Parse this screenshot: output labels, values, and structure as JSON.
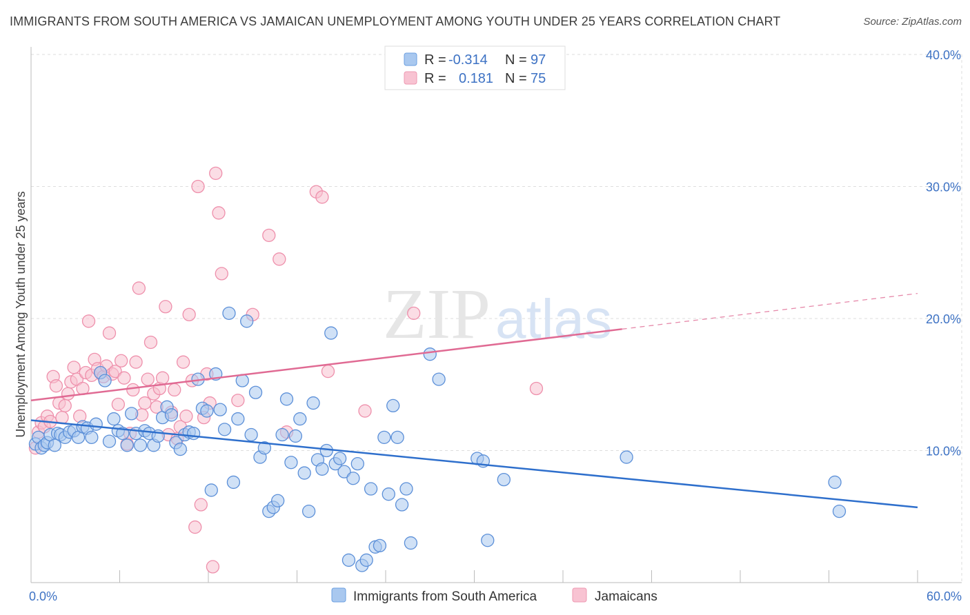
{
  "header": {
    "title": "IMMIGRANTS FROM SOUTH AMERICA VS JAMAICAN UNEMPLOYMENT AMONG YOUTH UNDER 25 YEARS CORRELATION CHART",
    "source": "Source: ZipAtlas.com"
  },
  "watermark": {
    "zip": "ZIP",
    "atlas": "atlas"
  },
  "legend": {
    "r_label": "R =",
    "n_label": "N =",
    "rows": [
      {
        "r": "-0.314",
        "n": "97",
        "fill": "#a9c8ef",
        "stroke": "#6b9fe0"
      },
      {
        "r": "0.181",
        "n": "75",
        "fill": "#f8c3d2",
        "stroke": "#ee98b2"
      }
    ]
  },
  "colors": {
    "blue_fill": "#a9c8ef",
    "blue_stroke": "#5b8fd8",
    "blue_line": "#2e6fcc",
    "pink_fill": "#f7c1d0",
    "pink_stroke": "#ee8fab",
    "pink_line": "#e06a93",
    "tick_label": "#3d72c4",
    "grid": "#dddddd"
  },
  "chart_data": {
    "type": "scatter",
    "title": "IMMIGRANTS FROM SOUTH AMERICA VS JAMAICAN UNEMPLOYMENT AMONG YOUTH UNDER 25 YEARS CORRELATION CHART",
    "xlabel": "",
    "ylabel": "Unemployment Among Youth under 25 years",
    "xlim": [
      0,
      60
    ],
    "ylim": [
      0,
      40
    ],
    "x_tick_labels": [
      "0.0%",
      "60.0%"
    ],
    "y_ticks": [
      10,
      20,
      30,
      40
    ],
    "y_tick_labels": [
      "10.0%",
      "20.0%",
      "30.0%",
      "40.0%"
    ],
    "grid": true,
    "legend_position": "top-center",
    "series": [
      {
        "name": "Immigrants from South America",
        "r": -0.314,
        "n": 97,
        "trend": {
          "x": [
            0,
            60
          ],
          "y": [
            12.3,
            5.7
          ],
          "dashed_from": null
        },
        "points": [
          [
            0.3,
            10.5
          ],
          [
            0.5,
            11.0
          ],
          [
            0.7,
            10.2
          ],
          [
            0.9,
            10.4
          ],
          [
            1.1,
            10.6
          ],
          [
            1.3,
            11.2
          ],
          [
            1.6,
            10.4
          ],
          [
            1.8,
            11.3
          ],
          [
            2.0,
            11.2
          ],
          [
            2.3,
            11.0
          ],
          [
            2.6,
            11.4
          ],
          [
            2.9,
            11.5
          ],
          [
            3.2,
            11.0
          ],
          [
            3.5,
            11.8
          ],
          [
            3.8,
            11.7
          ],
          [
            4.1,
            11.0
          ],
          [
            4.4,
            12.0
          ],
          [
            4.7,
            15.9
          ],
          [
            5.0,
            15.3
          ],
          [
            5.3,
            10.7
          ],
          [
            5.6,
            12.4
          ],
          [
            5.9,
            11.5
          ],
          [
            6.2,
            11.3
          ],
          [
            6.5,
            10.4
          ],
          [
            6.8,
            12.8
          ],
          [
            7.1,
            11.3
          ],
          [
            7.4,
            10.4
          ],
          [
            7.7,
            11.5
          ],
          [
            8.0,
            11.3
          ],
          [
            8.3,
            10.4
          ],
          [
            8.6,
            11.1
          ],
          [
            8.9,
            12.5
          ],
          [
            9.2,
            13.3
          ],
          [
            9.5,
            12.7
          ],
          [
            9.8,
            10.6
          ],
          [
            10.1,
            10.1
          ],
          [
            10.4,
            11.2
          ],
          [
            10.7,
            11.4
          ],
          [
            11.0,
            11.3
          ],
          [
            11.3,
            15.4
          ],
          [
            11.6,
            13.2
          ],
          [
            11.9,
            13.0
          ],
          [
            12.2,
            7.0
          ],
          [
            12.5,
            15.8
          ],
          [
            12.8,
            13.1
          ],
          [
            13.1,
            11.6
          ],
          [
            13.4,
            20.4
          ],
          [
            13.7,
            7.6
          ],
          [
            14.0,
            12.4
          ],
          [
            14.3,
            15.3
          ],
          [
            14.6,
            19.8
          ],
          [
            14.9,
            11.2
          ],
          [
            15.2,
            14.4
          ],
          [
            15.5,
            9.5
          ],
          [
            15.8,
            10.2
          ],
          [
            16.1,
            5.4
          ],
          [
            16.4,
            5.7
          ],
          [
            16.7,
            6.2
          ],
          [
            17.0,
            11.2
          ],
          [
            17.3,
            13.9
          ],
          [
            17.6,
            9.1
          ],
          [
            17.9,
            11.1
          ],
          [
            18.2,
            12.4
          ],
          [
            18.5,
            8.3
          ],
          [
            18.8,
            5.4
          ],
          [
            19.1,
            13.6
          ],
          [
            19.4,
            9.3
          ],
          [
            19.7,
            8.6
          ],
          [
            20.0,
            10.0
          ],
          [
            20.3,
            18.9
          ],
          [
            20.6,
            9.0
          ],
          [
            20.9,
            9.4
          ],
          [
            21.2,
            8.4
          ],
          [
            21.5,
            1.7
          ],
          [
            21.8,
            7.9
          ],
          [
            22.1,
            9.0
          ],
          [
            22.4,
            1.3
          ],
          [
            22.7,
            1.7
          ],
          [
            23.0,
            7.1
          ],
          [
            23.3,
            2.7
          ],
          [
            23.6,
            2.8
          ],
          [
            23.9,
            11.0
          ],
          [
            24.2,
            6.7
          ],
          [
            24.5,
            13.4
          ],
          [
            24.8,
            11.0
          ],
          [
            25.1,
            5.9
          ],
          [
            25.4,
            7.1
          ],
          [
            25.7,
            3.0
          ],
          [
            27.0,
            17.3
          ],
          [
            27.6,
            15.4
          ],
          [
            30.2,
            9.4
          ],
          [
            30.6,
            9.2
          ],
          [
            30.9,
            3.2
          ],
          [
            32.0,
            7.8
          ],
          [
            40.3,
            9.5
          ],
          [
            54.4,
            7.6
          ],
          [
            54.7,
            5.4
          ]
        ]
      },
      {
        "name": "Jamaicans",
        "r": 0.181,
        "n": 75,
        "trend": {
          "x": [
            0,
            60
          ],
          "y": [
            13.8,
            21.9
          ],
          "dashed_from": 40
        },
        "points": [
          [
            0.3,
            10.2
          ],
          [
            0.5,
            11.4
          ],
          [
            0.7,
            12.1
          ],
          [
            0.9,
            11.8
          ],
          [
            1.1,
            12.6
          ],
          [
            1.3,
            12.2
          ],
          [
            1.5,
            15.6
          ],
          [
            1.7,
            14.9
          ],
          [
            1.9,
            13.6
          ],
          [
            2.1,
            12.5
          ],
          [
            2.3,
            13.4
          ],
          [
            2.5,
            14.3
          ],
          [
            2.7,
            15.2
          ],
          [
            2.9,
            16.3
          ],
          [
            3.1,
            15.4
          ],
          [
            3.3,
            12.6
          ],
          [
            3.5,
            14.7
          ],
          [
            3.7,
            15.9
          ],
          [
            3.9,
            19.8
          ],
          [
            4.1,
            15.7
          ],
          [
            4.3,
            16.9
          ],
          [
            4.5,
            16.2
          ],
          [
            4.7,
            15.9
          ],
          [
            4.9,
            15.6
          ],
          [
            5.1,
            16.4
          ],
          [
            5.3,
            18.9
          ],
          [
            5.5,
            15.8
          ],
          [
            5.7,
            16.0
          ],
          [
            5.9,
            13.5
          ],
          [
            6.1,
            16.8
          ],
          [
            6.3,
            15.5
          ],
          [
            6.5,
            10.5
          ],
          [
            6.7,
            11.3
          ],
          [
            6.9,
            14.6
          ],
          [
            7.1,
            16.7
          ],
          [
            7.3,
            22.3
          ],
          [
            7.5,
            12.7
          ],
          [
            7.7,
            13.6
          ],
          [
            7.9,
            15.4
          ],
          [
            8.1,
            18.2
          ],
          [
            8.3,
            14.3
          ],
          [
            8.5,
            13.3
          ],
          [
            8.7,
            14.7
          ],
          [
            8.9,
            15.5
          ],
          [
            9.1,
            20.9
          ],
          [
            9.3,
            11.2
          ],
          [
            9.5,
            12.9
          ],
          [
            9.7,
            14.6
          ],
          [
            9.9,
            10.9
          ],
          [
            10.1,
            11.8
          ],
          [
            10.3,
            16.7
          ],
          [
            10.5,
            12.6
          ],
          [
            10.7,
            20.3
          ],
          [
            10.9,
            15.3
          ],
          [
            11.1,
            4.2
          ],
          [
            11.3,
            30.0
          ],
          [
            11.5,
            5.9
          ],
          [
            11.7,
            12.5
          ],
          [
            11.9,
            15.8
          ],
          [
            12.1,
            13.6
          ],
          [
            12.3,
            1.2
          ],
          [
            12.5,
            31.0
          ],
          [
            12.7,
            28.0
          ],
          [
            12.9,
            23.4
          ],
          [
            14.0,
            13.8
          ],
          [
            15.0,
            20.3
          ],
          [
            16.1,
            26.3
          ],
          [
            16.8,
            24.5
          ],
          [
            17.3,
            11.4
          ],
          [
            19.3,
            29.6
          ],
          [
            19.7,
            29.2
          ],
          [
            20.1,
            16.0
          ],
          [
            22.6,
            13.0
          ],
          [
            25.9,
            20.4
          ],
          [
            34.2,
            14.7
          ]
        ]
      }
    ]
  },
  "bottom_legend": [
    {
      "label": "Immigrants from South America"
    },
    {
      "label": "Jamaicans"
    }
  ]
}
